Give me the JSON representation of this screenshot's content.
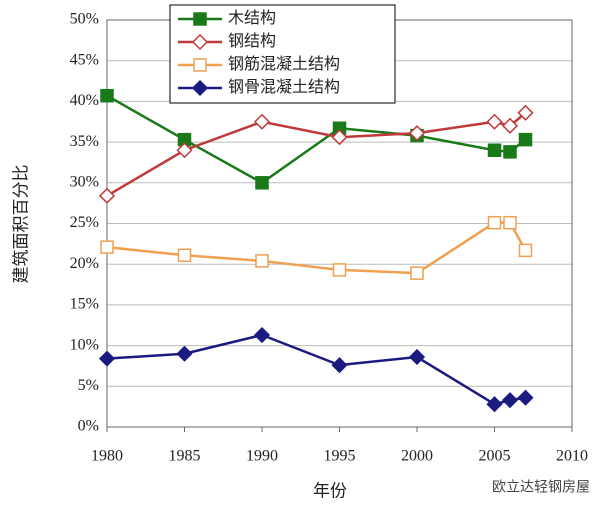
{
  "chart_data": {
    "type": "line",
    "x": [
      1980,
      1985,
      1990,
      1995,
      2000,
      2005,
      2006,
      2007
    ],
    "series": [
      {
        "name": "木结构",
        "color": "#1a7a1a",
        "marker": "square",
        "filled": true,
        "values": [
          40.7,
          35.3,
          30.0,
          36.7,
          35.8,
          34.0,
          33.8,
          35.3
        ]
      },
      {
        "name": "钢结构",
        "color": "#c0393b",
        "marker": "diamond",
        "filled": false,
        "values": [
          28.4,
          34.0,
          37.5,
          35.6,
          36.1,
          37.5,
          37.0,
          38.6
        ]
      },
      {
        "name": "钢筋混凝土结构",
        "color": "#f0a050",
        "marker": "square",
        "filled": false,
        "values": [
          22.1,
          21.1,
          20.4,
          19.3,
          18.9,
          25.1,
          25.1,
          21.7
        ]
      },
      {
        "name": "钢骨混凝土结构",
        "color": "#1a1a80",
        "marker": "diamond",
        "filled": true,
        "values": [
          8.4,
          9.0,
          11.3,
          7.6,
          8.6,
          2.8,
          3.3,
          3.6
        ]
      }
    ],
    "xlim": [
      1980,
      2010
    ],
    "xticks": [
      1980,
      1985,
      1990,
      1995,
      2000,
      2005,
      2010
    ],
    "ylim": [
      0,
      50
    ],
    "yticks": [
      {
        "value": 0,
        "label": "0%"
      },
      {
        "value": 5,
        "label": "5%"
      },
      {
        "value": 10,
        "label": "10%"
      },
      {
        "value": 15,
        "label": "15%"
      },
      {
        "value": 20,
        "label": "20%"
      },
      {
        "value": 25,
        "label": "25%"
      },
      {
        "value": 30,
        "label": "30%"
      },
      {
        "value": 35,
        "label": "35%"
      },
      {
        "value": 40,
        "label": "40%"
      },
      {
        "value": 45,
        "label": "45%"
      },
      {
        "value": 50,
        "label": "50%"
      }
    ],
    "xlabel": "年份",
    "ylabel": "建筑面积百分比",
    "grid": true,
    "legend": "upper center",
    "watermark": "欧立达轻钢房屋"
  }
}
